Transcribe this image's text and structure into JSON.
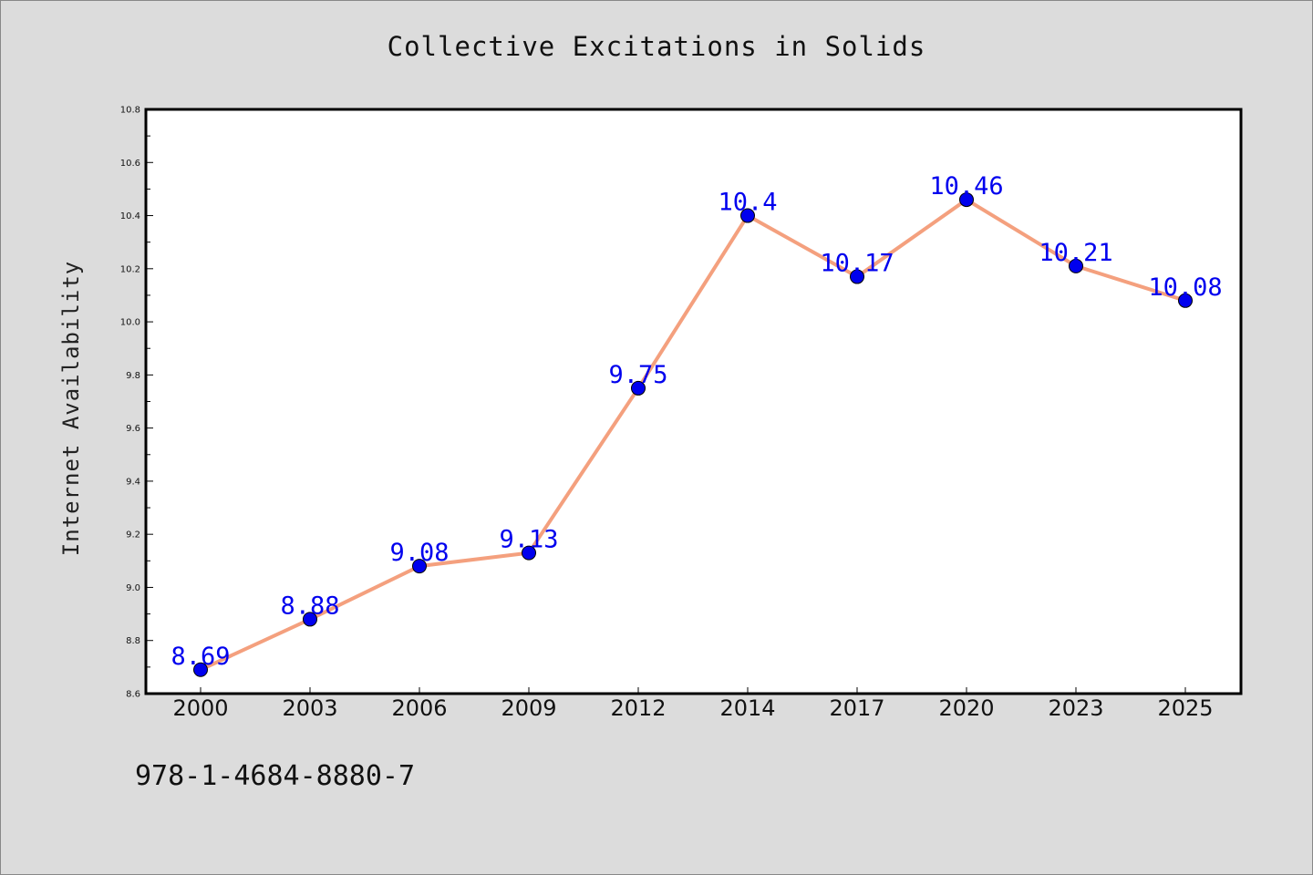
{
  "chart_data": {
    "type": "line",
    "title": "Collective Excitations in Solids",
    "xlabel": "",
    "ylabel": "Internet Availability",
    "categories": [
      "2000",
      "2003",
      "2006",
      "2009",
      "2012",
      "2014",
      "2017",
      "2020",
      "2023",
      "2025"
    ],
    "series": [
      {
        "values": [
          8.69,
          8.88,
          9.08,
          9.13,
          9.75,
          10.4,
          10.17,
          10.46,
          10.21,
          10.08
        ],
        "labels": [
          "8.69",
          "8.88",
          "9.08",
          "9.13",
          "9.75",
          "10.4",
          "10.17",
          "10.46",
          "10.21",
          "10.08"
        ],
        "line_color": "#f4a07e",
        "marker_color": "#0000ee"
      }
    ],
    "ylim": [
      8.6,
      10.8
    ],
    "yticks": [
      "8.6",
      "8.8",
      "9.0",
      "9.2",
      "9.4",
      "9.6",
      "9.8",
      "10.0",
      "10.2",
      "10.4",
      "10.6",
      "10.8"
    ],
    "grid": false,
    "legend": "none"
  },
  "footer": {
    "isbn": "978-1-4684-8880-7"
  },
  "colors": {
    "background": "#dcdcdc",
    "plot_background": "#ffffff",
    "line": "#f4a07e",
    "marker": "#0000ee",
    "data_label": "#0000ee"
  }
}
